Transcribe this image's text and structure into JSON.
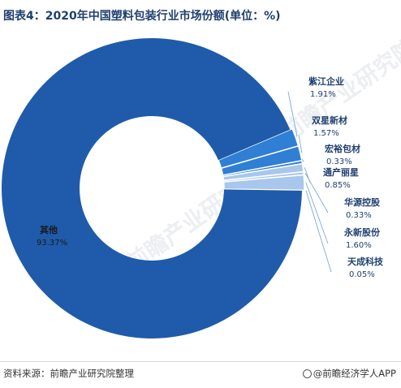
{
  "title": "图表4：2020年中国塑料包装行业市场份额(单位：%)",
  "source": "资料来源：前瞻产业研究院整理",
  "brand": "@前瞻经济学人APP",
  "watermark": "前瞻产业研究院",
  "colors": {
    "main": "#1f5baa",
    "small": "#2f7fd4",
    "light": "#a9c7ec",
    "leader": "#6f9fd8",
    "text": "#1f3f6f"
  },
  "chart_data": {
    "type": "pie",
    "donut": true,
    "title": "图表4：2020年中国塑料包装行业市场份额(单位：%)",
    "unit": "%",
    "slices": [
      {
        "label": "紫江企业",
        "value": 1.91,
        "display": "1.91%"
      },
      {
        "label": "双星新材",
        "value": 1.57,
        "display": "1.57%"
      },
      {
        "label": "宏裕包材",
        "value": 0.33,
        "display": "0.33%"
      },
      {
        "label": "通产丽星",
        "value": 0.85,
        "display": "0.85%"
      },
      {
        "label": "华源控股",
        "value": 0.33,
        "display": "0.33%"
      },
      {
        "label": "永新股份",
        "value": 1.6,
        "display": "1.60%"
      },
      {
        "label": "天成科技",
        "value": 0.05,
        "display": "0.05%"
      },
      {
        "label": "其他",
        "value": 93.37,
        "display": "93.37%"
      }
    ]
  }
}
